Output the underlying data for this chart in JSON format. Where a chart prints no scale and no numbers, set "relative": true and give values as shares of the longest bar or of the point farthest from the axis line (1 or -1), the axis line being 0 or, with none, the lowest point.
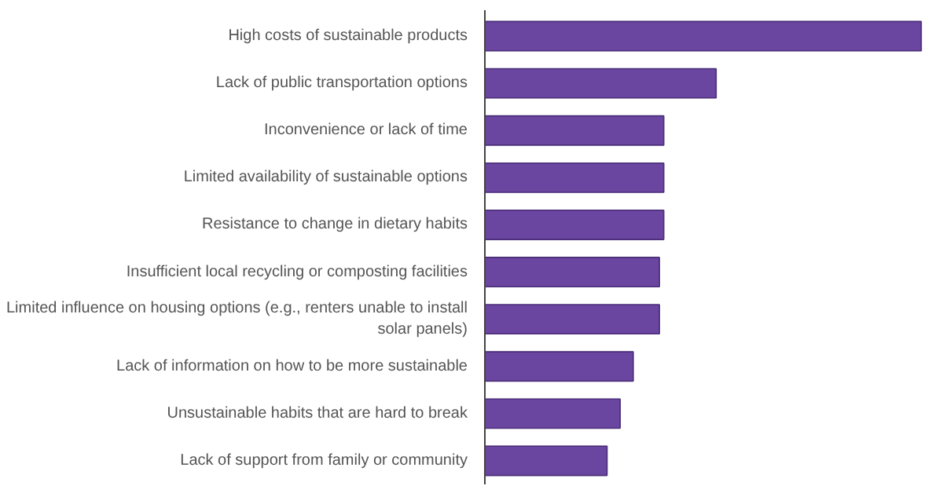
{
  "chart_data": {
    "type": "bar",
    "orientation": "horizontal",
    "relative": true,
    "categories": [
      "High costs of sustainable products",
      "Lack of public transportation options",
      "Inconvenience or lack of time",
      "Limited availability of sustainable options",
      "Resistance to change in dietary habits",
      "Insufficient local recycling or composting facilities",
      "Limited influence on housing options (e.g., renters unable to install solar panels)",
      "Lack of information on how to be more sustainable",
      "Unsustainable habits that are hard to break",
      "Lack of support from family or community"
    ],
    "values": [
      1,
      0.53,
      0.41,
      0.41,
      0.41,
      0.4,
      0.4,
      0.34,
      0.31,
      0.28
    ],
    "color": "#6b46a1"
  }
}
